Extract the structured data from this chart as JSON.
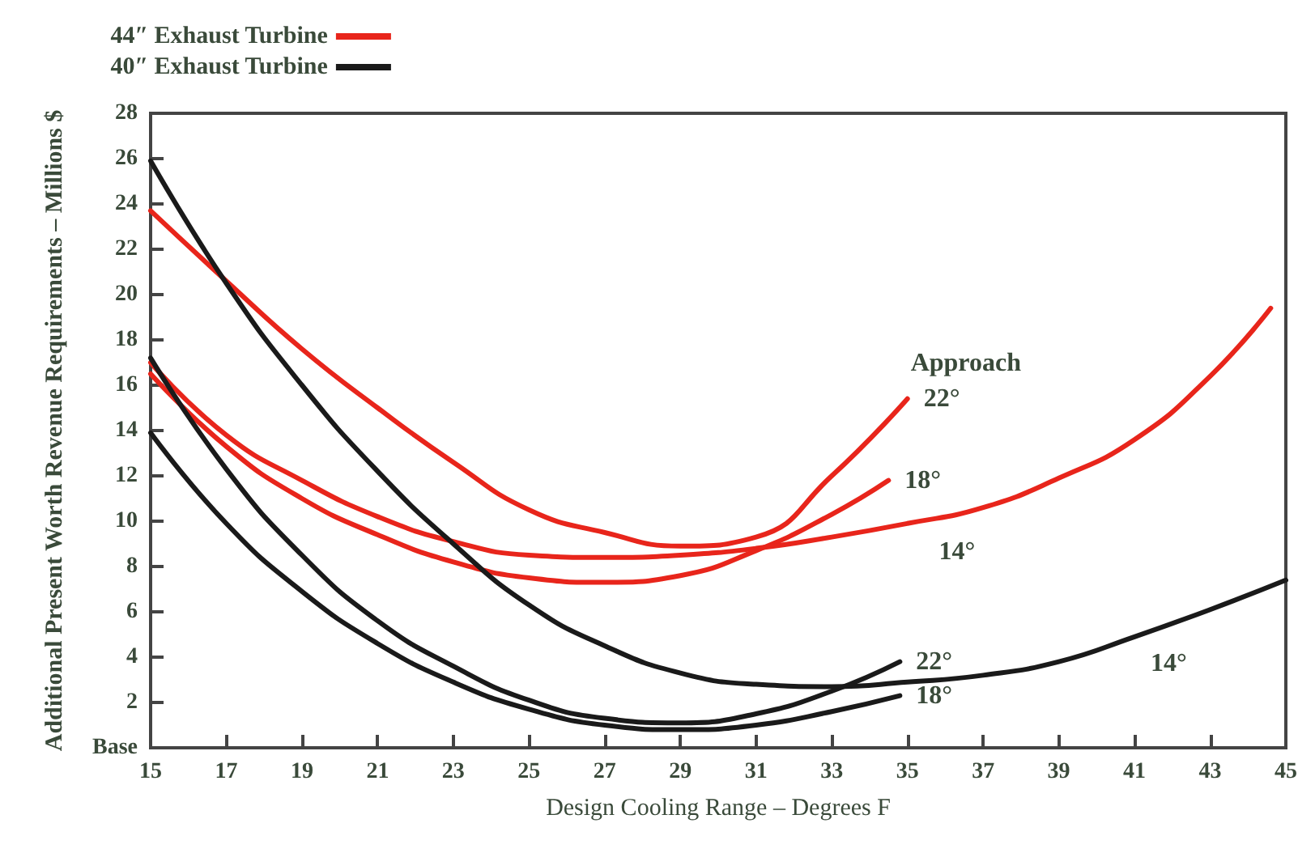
{
  "chart_data": {
    "type": "line",
    "xlabel": "Design Cooling Range – Degrees F",
    "ylabel": "Additional Present Worth Revenue Requirements – Millions $",
    "xlim": [
      15,
      45
    ],
    "xticks": [
      15,
      17,
      19,
      21,
      23,
      25,
      27,
      29,
      31,
      33,
      35,
      37,
      39,
      41,
      43,
      45
    ],
    "ylim": [
      0,
      28
    ],
    "yticks": [
      {
        "value": 0,
        "label": "Base"
      },
      2,
      4,
      6,
      8,
      10,
      12,
      14,
      16,
      18,
      20,
      22,
      24,
      26,
      28
    ],
    "legend": "top left",
    "grid": false,
    "marker": "none",
    "line_style": "solid",
    "series": [
      {
        "name": "44″ Exhaust Turbine",
        "color": "#e8251b",
        "x": [
          15,
          17,
          19,
          21,
          23,
          25,
          27,
          29,
          31,
          33,
          35
        ],
        "values": [
          23.7,
          20.6,
          17.6,
          15.0,
          12.6,
          10.5,
          9.5,
          8.9,
          9.3,
          12.0,
          15.4
        ]
      },
      {
        "color": "#e8251b",
        "x": [
          15,
          17,
          19,
          21,
          23,
          25,
          27,
          29,
          31,
          33,
          34.5
        ],
        "values": [
          16.5,
          13.3,
          11.0,
          9.4,
          8.2,
          7.5,
          7.3,
          7.6,
          8.7,
          10.3,
          11.8
        ]
      },
      {
        "color": "#e8251b",
        "x": [
          15,
          17,
          19,
          21,
          23,
          25,
          27,
          29,
          31,
          33,
          35,
          37,
          39,
          41,
          43,
          44.6
        ],
        "values": [
          17.0,
          13.8,
          11.8,
          10.2,
          9.1,
          8.5,
          8.4,
          8.5,
          8.8,
          9.3,
          9.9,
          10.6,
          11.9,
          13.6,
          16.4,
          19.4
        ]
      },
      {
        "name": "40″ Exhaust Turbine",
        "color": "#1a1a1a",
        "x": [
          15,
          17,
          19,
          21,
          23,
          25,
          27,
          29,
          31,
          33,
          34.8
        ],
        "values": [
          17.2,
          12.3,
          8.5,
          5.6,
          3.6,
          2.1,
          1.3,
          1.1,
          1.5,
          2.5,
          3.8
        ]
      },
      {
        "color": "#1a1a1a",
        "x": [
          15,
          17,
          19,
          21,
          23,
          25,
          27,
          29,
          31,
          33,
          34.8
        ],
        "values": [
          13.9,
          9.9,
          6.9,
          4.6,
          2.9,
          1.7,
          1.0,
          0.8,
          1.0,
          1.6,
          2.3
        ]
      },
      {
        "color": "#1a1a1a",
        "x": [
          15,
          17,
          19,
          21,
          23,
          25,
          27,
          29,
          31,
          33,
          35,
          37,
          39,
          41,
          43,
          45
        ],
        "values": [
          25.9,
          20.5,
          16.0,
          12.2,
          9.0,
          6.3,
          4.5,
          3.3,
          2.8,
          2.7,
          2.9,
          3.2,
          3.8,
          4.9,
          6.1,
          7.4
        ]
      }
    ],
    "annotations": [
      "Approach",
      {
        "text": "22°",
        "x": 35,
        "y": 15.4
      },
      {
        "text": "18°",
        "x": 34.5,
        "y": 11.8
      },
      {
        "text": "14°",
        "x": 36,
        "y": 10.2
      },
      {
        "text": "22°",
        "x": 34.8,
        "y": 3.8
      },
      {
        "text": "18°",
        "x": 34.8,
        "y": 2.3
      },
      {
        "text": "14°",
        "x": 41.6,
        "y": 5.3
      }
    ]
  }
}
